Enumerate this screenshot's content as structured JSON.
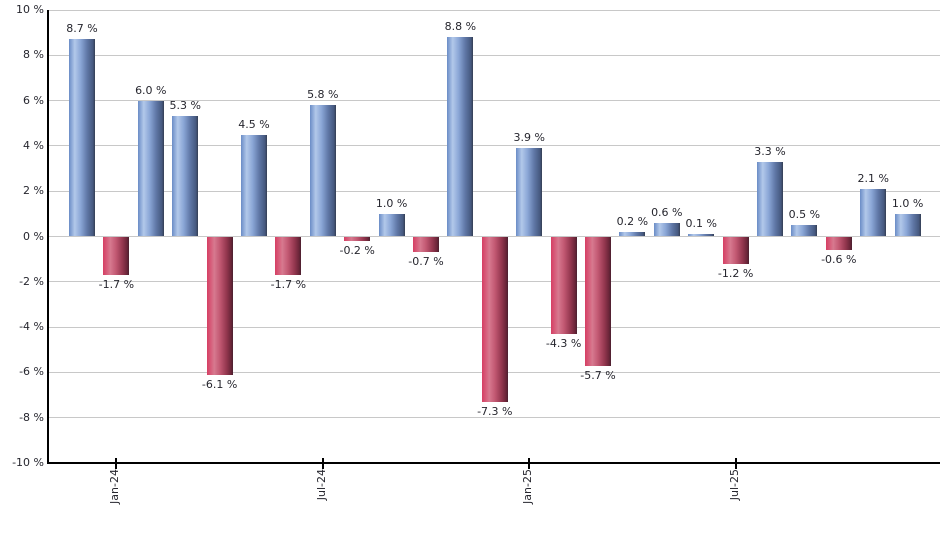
{
  "chart_data": {
    "type": "bar",
    "title": "",
    "xlabel": "",
    "ylabel": "",
    "ylim": [
      -10,
      10
    ],
    "grid": true,
    "legend": false,
    "y_ticks": [
      {
        "value": 10,
        "label": "10 %"
      },
      {
        "value": 8,
        "label": "8 %"
      },
      {
        "value": 6,
        "label": "6 %"
      },
      {
        "value": 4,
        "label": "4 %"
      },
      {
        "value": 2,
        "label": "2 %"
      },
      {
        "value": 0,
        "label": "0 %"
      },
      {
        "value": -2,
        "label": "-2 %"
      },
      {
        "value": -4,
        "label": "-4 %"
      },
      {
        "value": -6,
        "label": "-6 %"
      },
      {
        "value": -8,
        "label": "-8 %"
      },
      {
        "value": -10,
        "label": "-10 %"
      }
    ],
    "x_ticks": [
      {
        "label": "Jan-24",
        "bar_index": 1
      },
      {
        "label": "Jul-24",
        "bar_index": 7
      },
      {
        "label": "Jan-25",
        "bar_index": 13
      },
      {
        "label": "Jul-25",
        "bar_index": 19
      }
    ],
    "bars": [
      {
        "value": 8.7,
        "label": "8.7 %"
      },
      {
        "value": -1.7,
        "label": "-1.7 %"
      },
      {
        "value": 6.0,
        "label": "6.0 %"
      },
      {
        "value": 5.3,
        "label": "5.3 %"
      },
      {
        "value": -6.1,
        "label": "-6.1 %"
      },
      {
        "value": 4.5,
        "label": "4.5 %"
      },
      {
        "value": -1.7,
        "label": "-1.7 %"
      },
      {
        "value": 5.8,
        "label": "5.8 %"
      },
      {
        "value": -0.2,
        "label": "-0.2 %"
      },
      {
        "value": 1.0,
        "label": "1.0 %"
      },
      {
        "value": -0.7,
        "label": "-0.7 %"
      },
      {
        "value": 8.8,
        "label": "8.8 %"
      },
      {
        "value": -7.3,
        "label": "-7.3 %"
      },
      {
        "value": 3.9,
        "label": "3.9 %"
      },
      {
        "value": -4.3,
        "label": "-4.3 %"
      },
      {
        "value": -5.7,
        "label": "-5.7 %"
      },
      {
        "value": 0.2,
        "label": "0.2 %"
      },
      {
        "value": 0.6,
        "label": "0.6 %"
      },
      {
        "value": 0.1,
        "label": "0.1 %"
      },
      {
        "value": -1.2,
        "label": "-1.2 %"
      },
      {
        "value": 3.3,
        "label": "3.3 %"
      },
      {
        "value": 0.5,
        "label": "0.5 %"
      },
      {
        "value": -0.6,
        "label": "-0.6 %"
      },
      {
        "value": 2.1,
        "label": "2.1 %"
      },
      {
        "value": 1.0,
        "label": "1.0 %"
      }
    ],
    "colors": {
      "positive_bar": "#7b9bd2",
      "negative_bar": "#c94a68",
      "gridline": "#c8c8c8",
      "axis": "#000000",
      "text": "#26262e"
    }
  }
}
